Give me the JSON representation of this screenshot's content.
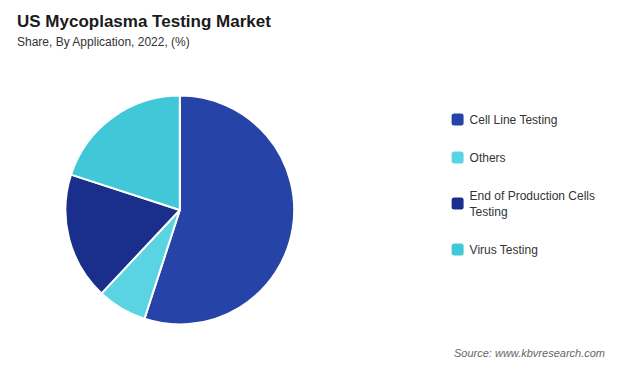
{
  "chart_data": {
    "type": "pie",
    "title": "US Mycoplasma Testing Market",
    "subtitle": "Share, By Application, 2022, (%)",
    "source": "Source: www.kbvresearch.com",
    "categories": [
      "Cell Line Testing",
      "Others",
      "End of Production Cells\nTesting",
      "Virus Testing"
    ],
    "values": [
      55,
      7,
      18,
      20
    ],
    "colors": [
      "#2644a8",
      "#5ad4e2",
      "#1a2e8c",
      "#41c8d8"
    ],
    "legend": "right"
  }
}
